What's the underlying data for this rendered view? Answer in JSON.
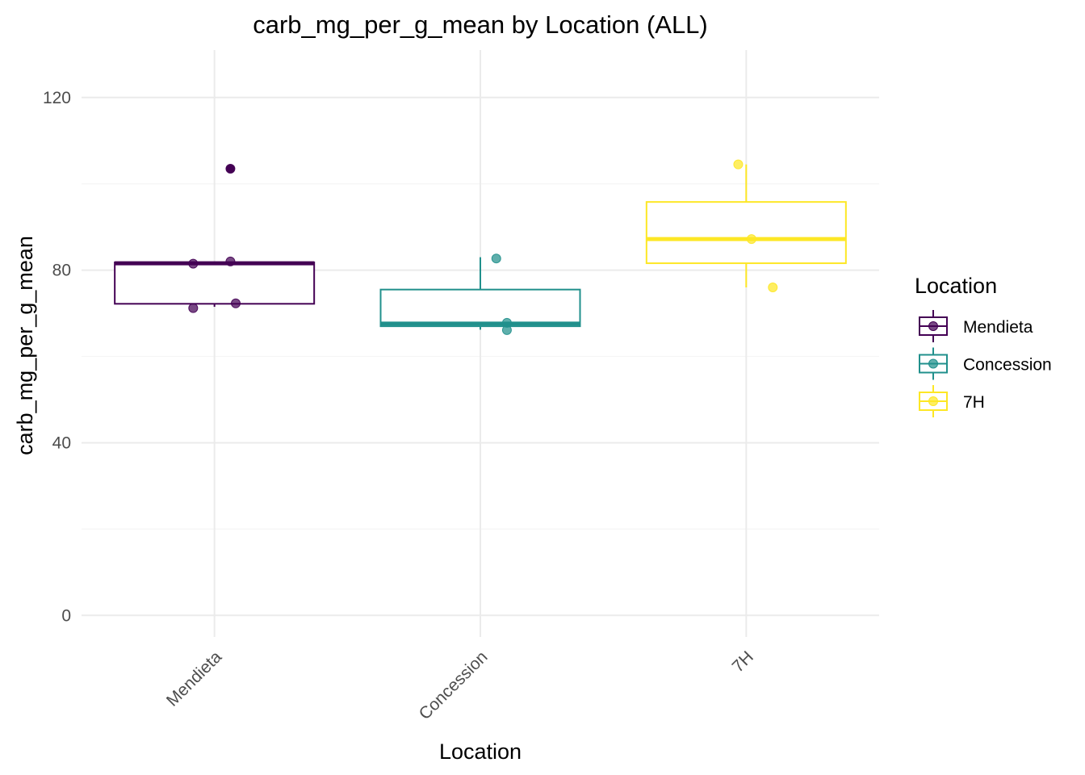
{
  "chart_data": {
    "type": "box",
    "title": "carb_mg_per_g_mean by Location (ALL)",
    "xlabel": "Location",
    "ylabel": "carb_mg_per_g_mean",
    "ylim": [
      -5,
      131
    ],
    "yticks": [
      0,
      40,
      80,
      120
    ],
    "categories": [
      "Mendieta",
      "Concession",
      "7H"
    ],
    "grid": true,
    "legend": {
      "title": "Location",
      "position": "right",
      "entries": [
        "Mendieta",
        "Concession",
        "7H"
      ]
    },
    "series": [
      {
        "name": "Mendieta",
        "color": "#440154",
        "box": {
          "min": 71.5,
          "q1": 72.2,
          "median": 81.6,
          "q3": 81.8,
          "max": 82.0
        },
        "outliers": [
          103.5
        ],
        "points": [
          103.5,
          81.5,
          82.0,
          71.2,
          72.3
        ]
      },
      {
        "name": "Concession",
        "color": "#21908C",
        "box": {
          "min": 66.2,
          "q1": 67.0,
          "median": 67.6,
          "q3": 75.5,
          "max": 83.0
        },
        "outliers": [],
        "points": [
          82.7,
          67.8,
          66.1
        ]
      },
      {
        "name": "7H",
        "color": "#FDE725",
        "box": {
          "min": 76.0,
          "q1": 81.6,
          "median": 87.2,
          "q3": 95.8,
          "max": 104.5
        },
        "outliers": [],
        "points": [
          104.5,
          87.2,
          76.0
        ]
      }
    ]
  }
}
